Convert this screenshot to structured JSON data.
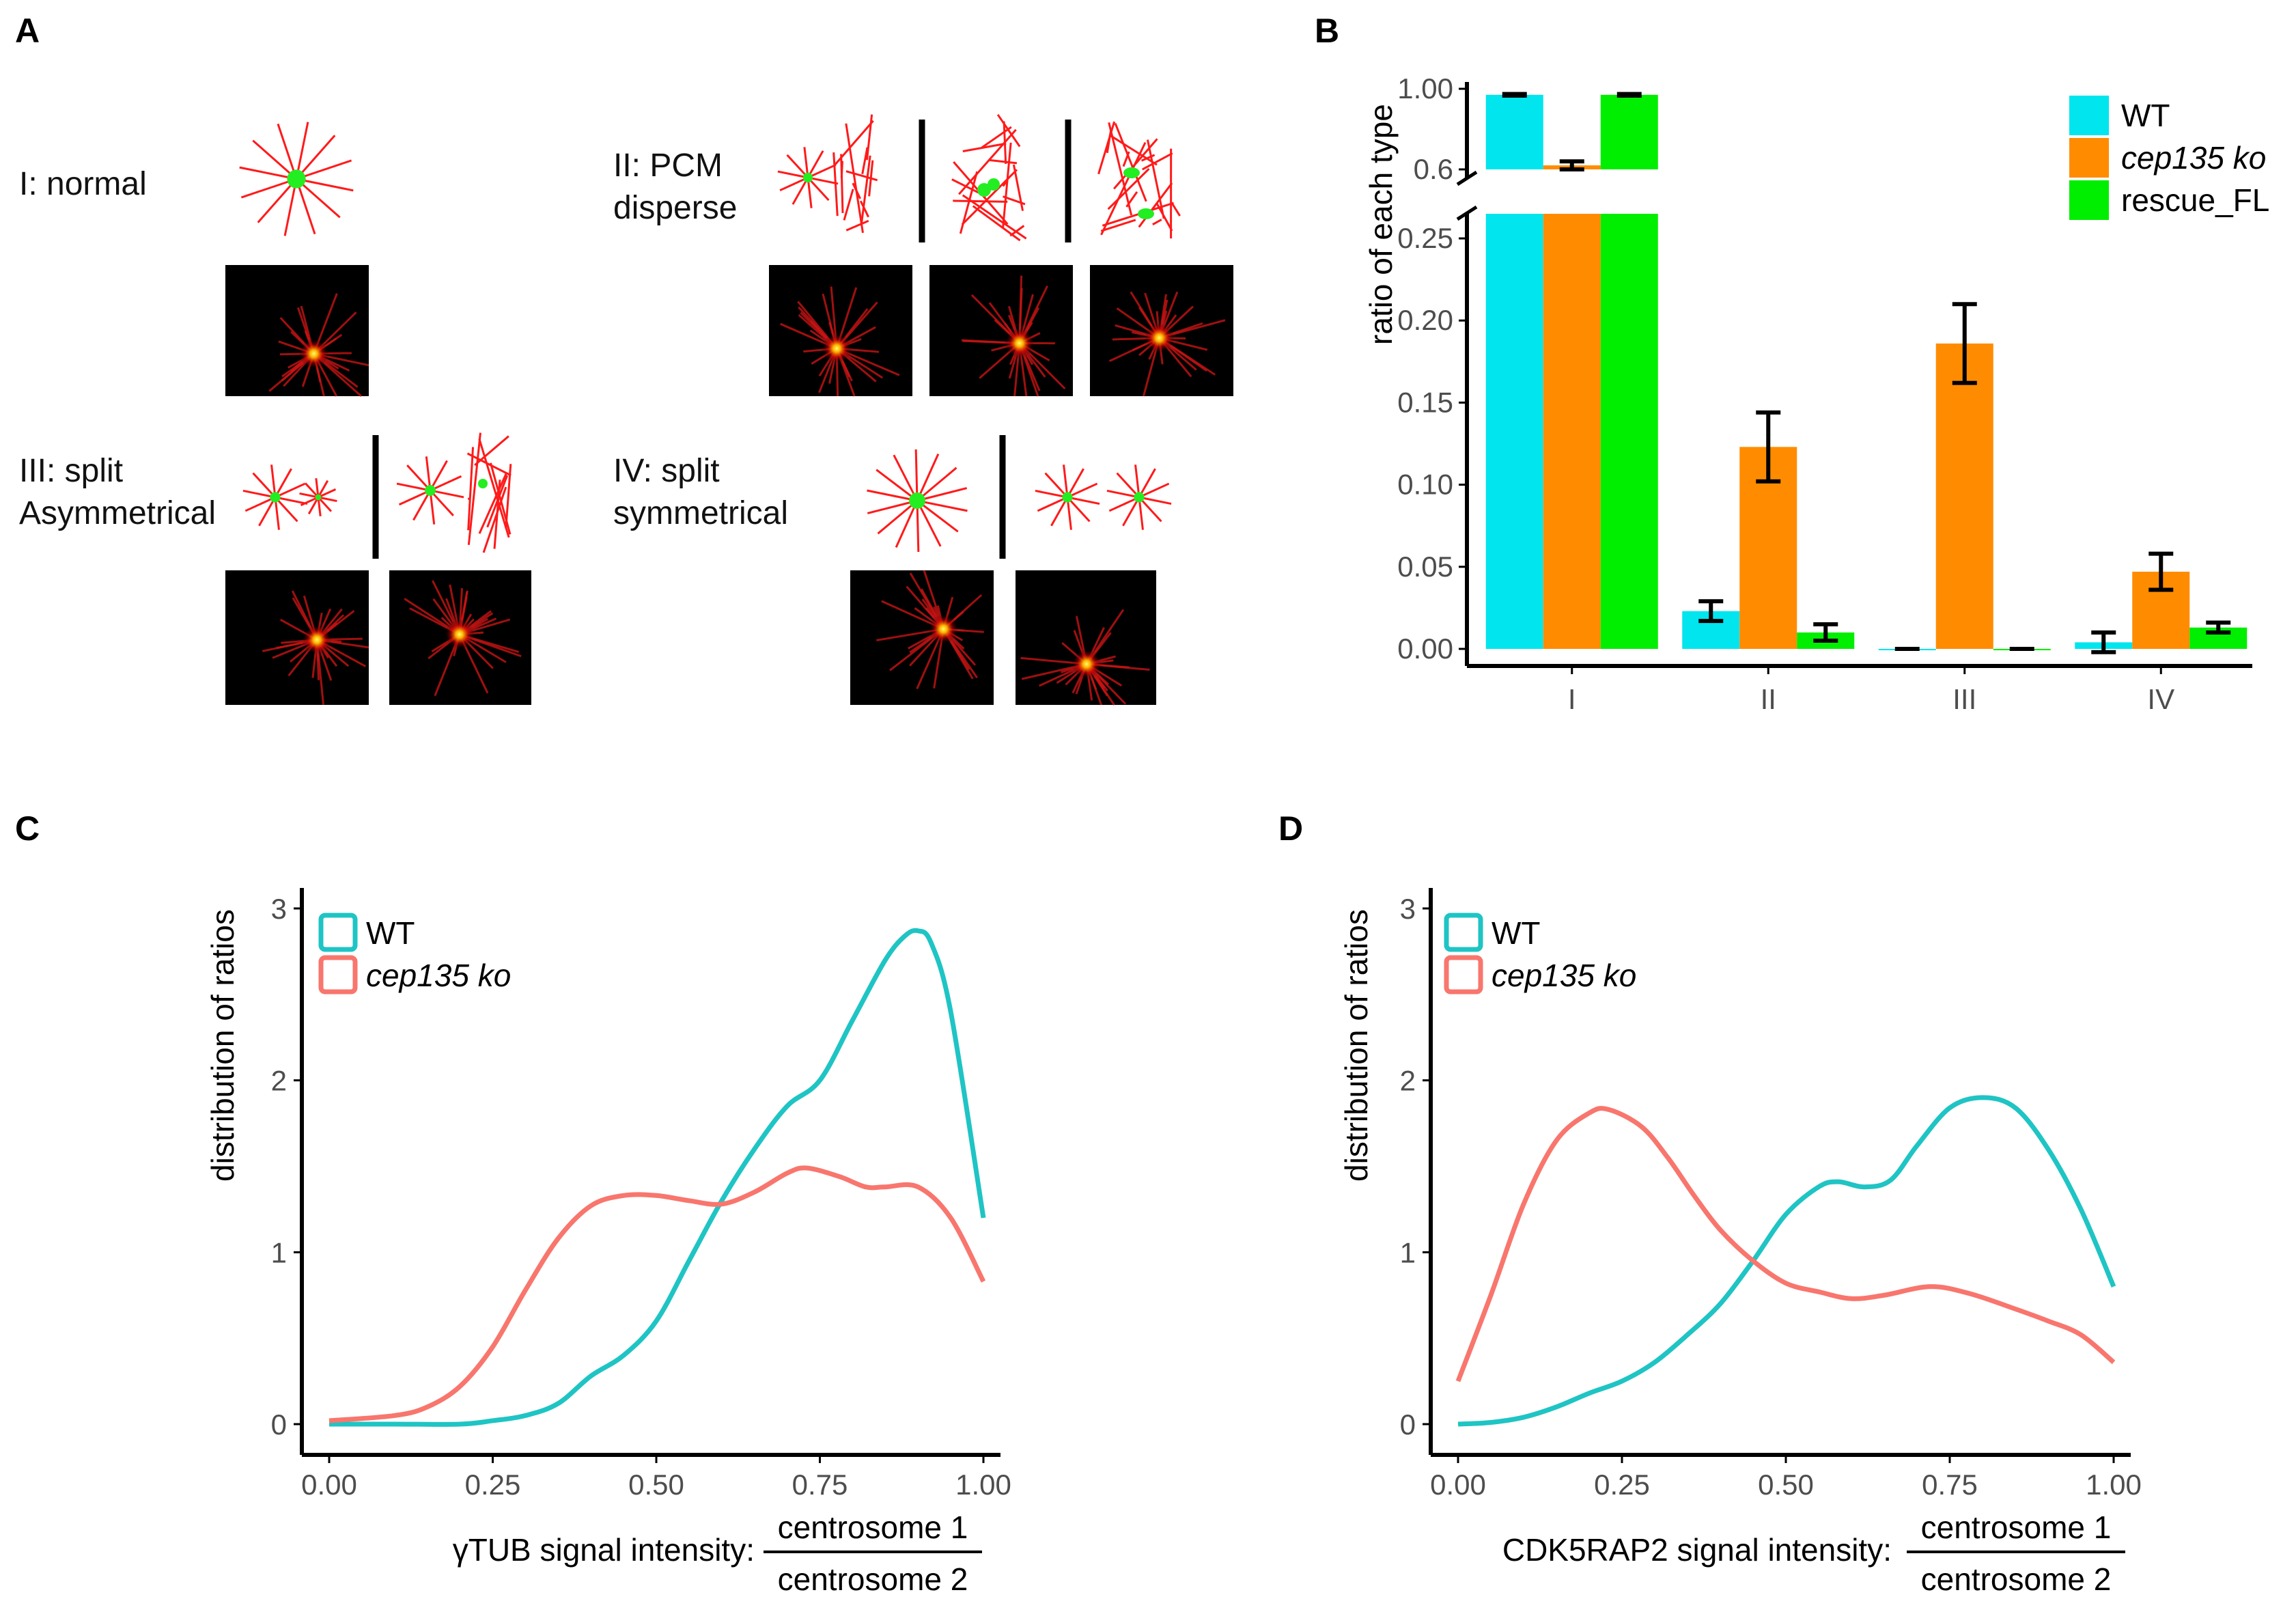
{
  "panel_a": {
    "letter": "A",
    "categories": [
      {
        "label": "I: normal"
      },
      {
        "label_lines": [
          "II: PCM",
          "disperse"
        ]
      },
      {
        "label_lines": [
          "III: split",
          "Asymmetrical"
        ]
      },
      {
        "label_lines": [
          "IV: split",
          "symmetrical"
        ]
      }
    ]
  },
  "colors": {
    "wt": "#00e5ee",
    "ko": "#ff8c00",
    "rescue": "#00ee00",
    "wt_line": "#1fc4c4",
    "ko_line": "#f8766d",
    "aster_red": "#ff1a1a",
    "centrosome_green": "#22ee22"
  },
  "chart_data": [
    {
      "id": "B",
      "letter": "B",
      "type": "bar",
      "ylabel": "ratio of each type",
      "categories": [
        "I",
        "II",
        "III",
        "IV"
      ],
      "y_axis_broken": true,
      "y_ticks_upper": [
        "1.00",
        "0.6"
      ],
      "y_ticks_lower": [
        "0.00",
        "0.05",
        "0.10",
        "0.15",
        "0.20",
        "0.25"
      ],
      "upper_range": [
        0.6,
        1.0
      ],
      "lower_range": [
        0,
        0.25
      ],
      "series": [
        {
          "name": "WT",
          "color_key": "wt",
          "values": [
            0.97,
            0.023,
            0.0,
            0.004
          ],
          "errors": [
            0.004,
            0.006,
            0.0,
            0.006
          ]
        },
        {
          "name": "cep135 ko",
          "italic": true,
          "color_key": "ko",
          "values": [
            0.62,
            0.123,
            0.186,
            0.047
          ],
          "errors": [
            0.02,
            0.021,
            0.024,
            0.011
          ]
        },
        {
          "name": "rescue_FL",
          "color_key": "rescue",
          "values": [
            0.97,
            0.01,
            0.0,
            0.013
          ],
          "errors": [
            0.004,
            0.005,
            0.0,
            0.003
          ]
        }
      ]
    },
    {
      "id": "C",
      "letter": "C",
      "type": "line",
      "ylabel": "distribution of ratios",
      "xlabel_prefix": "γTUB signal intensity:",
      "fraction_numerator": "centrosome 1",
      "fraction_denominator": "centrosome 2",
      "x_ticks": [
        "0.00",
        "0.25",
        "0.50",
        "0.75",
        "1.00"
      ],
      "y_ticks": [
        "0",
        "1",
        "2",
        "3"
      ],
      "xlim": [
        0,
        1
      ],
      "ylim": [
        0,
        3
      ],
      "series": [
        {
          "name": "WT",
          "color_key": "wt_line",
          "x": [
            0.0,
            0.1,
            0.2,
            0.25,
            0.3,
            0.35,
            0.4,
            0.45,
            0.5,
            0.55,
            0.6,
            0.65,
            0.7,
            0.75,
            0.8,
            0.85,
            0.88,
            0.9,
            0.92,
            0.95,
            1.0
          ],
          "y": [
            0.0,
            0.0,
            0.0,
            0.02,
            0.05,
            0.12,
            0.28,
            0.4,
            0.6,
            0.95,
            1.3,
            1.6,
            1.85,
            2.0,
            2.35,
            2.7,
            2.84,
            2.87,
            2.8,
            2.4,
            1.2
          ]
        },
        {
          "name": "cep135 ko",
          "italic": true,
          "color_key": "ko_line",
          "x": [
            0.0,
            0.1,
            0.15,
            0.2,
            0.25,
            0.3,
            0.35,
            0.4,
            0.45,
            0.5,
            0.55,
            0.6,
            0.65,
            0.7,
            0.73,
            0.78,
            0.82,
            0.85,
            0.9,
            0.95,
            1.0
          ],
          "y": [
            0.02,
            0.05,
            0.1,
            0.22,
            0.45,
            0.78,
            1.08,
            1.27,
            1.33,
            1.33,
            1.3,
            1.28,
            1.35,
            1.46,
            1.49,
            1.44,
            1.38,
            1.38,
            1.38,
            1.2,
            0.83
          ]
        }
      ]
    },
    {
      "id": "D",
      "letter": "D",
      "type": "line",
      "ylabel": "distribution of ratios",
      "xlabel_prefix": "CDK5RAP2 signal intensity:",
      "fraction_numerator": "centrosome 1",
      "fraction_denominator": "centrosome 2",
      "x_ticks": [
        "0.00",
        "0.25",
        "0.50",
        "0.75",
        "1.00"
      ],
      "y_ticks": [
        "0",
        "1",
        "2",
        "3"
      ],
      "xlim": [
        0,
        1
      ],
      "ylim": [
        0,
        3
      ],
      "series": [
        {
          "name": "WT",
          "color_key": "wt_line",
          "x": [
            0.0,
            0.05,
            0.1,
            0.15,
            0.2,
            0.25,
            0.3,
            0.35,
            0.4,
            0.45,
            0.5,
            0.55,
            0.58,
            0.62,
            0.66,
            0.7,
            0.75,
            0.8,
            0.85,
            0.9,
            0.95,
            1.0
          ],
          "y": [
            0.0,
            0.01,
            0.04,
            0.1,
            0.18,
            0.25,
            0.36,
            0.52,
            0.7,
            0.95,
            1.22,
            1.38,
            1.41,
            1.38,
            1.42,
            1.62,
            1.84,
            1.9,
            1.84,
            1.6,
            1.25,
            0.8
          ]
        },
        {
          "name": "cep135 ko",
          "italic": true,
          "color_key": "ko_line",
          "x": [
            0.0,
            0.05,
            0.1,
            0.15,
            0.2,
            0.23,
            0.28,
            0.32,
            0.36,
            0.4,
            0.45,
            0.5,
            0.55,
            0.6,
            0.65,
            0.72,
            0.78,
            0.85,
            0.9,
            0.95,
            1.0
          ],
          "y": [
            0.25,
            0.75,
            1.28,
            1.65,
            1.81,
            1.83,
            1.73,
            1.55,
            1.33,
            1.13,
            0.95,
            0.82,
            0.77,
            0.73,
            0.75,
            0.8,
            0.76,
            0.67,
            0.6,
            0.52,
            0.36
          ]
        }
      ]
    }
  ]
}
